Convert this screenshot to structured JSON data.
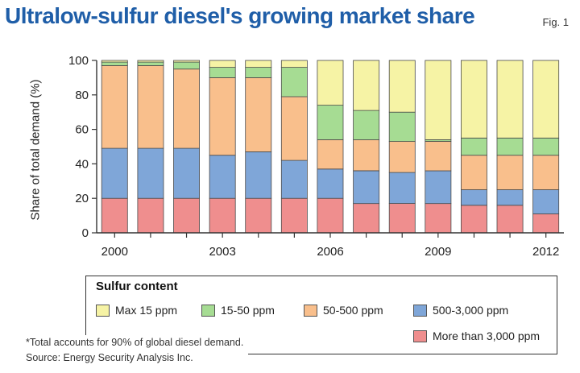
{
  "header": {
    "title": "Ultralow-sulfur diesel's growing market share",
    "fig_label": "Fig. 1"
  },
  "chart_data": {
    "type": "bar",
    "stacked": true,
    "title": "Ultralow-sulfur diesel's growing market share",
    "xlabel": "",
    "ylabel": "Share of total demand (%)",
    "ylim": [
      0,
      100
    ],
    "yticks": [
      0,
      20,
      40,
      60,
      80,
      100
    ],
    "x_tick_labels": [
      "2000",
      "2003",
      "2006",
      "2009",
      "2012"
    ],
    "grid": false,
    "categories": [
      "2000",
      "2001",
      "2002",
      "2003",
      "2004",
      "2005",
      "2006",
      "2007",
      "2008",
      "2009",
      "2010",
      "2011",
      "2012"
    ],
    "series": [
      {
        "name": "More than 3,000 ppm",
        "color": "#ef8e8e",
        "values": [
          20,
          20,
          20,
          20,
          20,
          20,
          20,
          17,
          17,
          17,
          16,
          16,
          11
        ]
      },
      {
        "name": "500-3,000 ppm",
        "color": "#7fa6d8",
        "values": [
          29,
          29,
          29,
          25,
          27,
          22,
          17,
          19,
          18,
          19,
          9,
          9,
          14
        ]
      },
      {
        "name": "50-500 ppm",
        "color": "#f9bf8c",
        "values": [
          48,
          48,
          46,
          45,
          43,
          37,
          17,
          18,
          18,
          17,
          20,
          20,
          20
        ]
      },
      {
        "name": "15-50 ppm",
        "color": "#a6dc93",
        "values": [
          2,
          2,
          4,
          6,
          6,
          17,
          20,
          17,
          17,
          1,
          10,
          10,
          10
        ]
      },
      {
        "name": "Max 15 ppm",
        "color": "#f6f3a5",
        "values": [
          1,
          1,
          1,
          4,
          4,
          4,
          26,
          29,
          30,
          46,
          45,
          45,
          45
        ]
      }
    ],
    "legend": {
      "title": "Sulfur content",
      "placement": "bottom",
      "order": [
        "Max 15 ppm",
        "15-50 ppm",
        "50-500 ppm",
        "500-3,000 ppm",
        "More than 3,000 ppm"
      ]
    }
  },
  "footnote": {
    "note": "*Total accounts for 90% of global diesel demand.",
    "source": "Source: Energy Security Analysis Inc."
  }
}
